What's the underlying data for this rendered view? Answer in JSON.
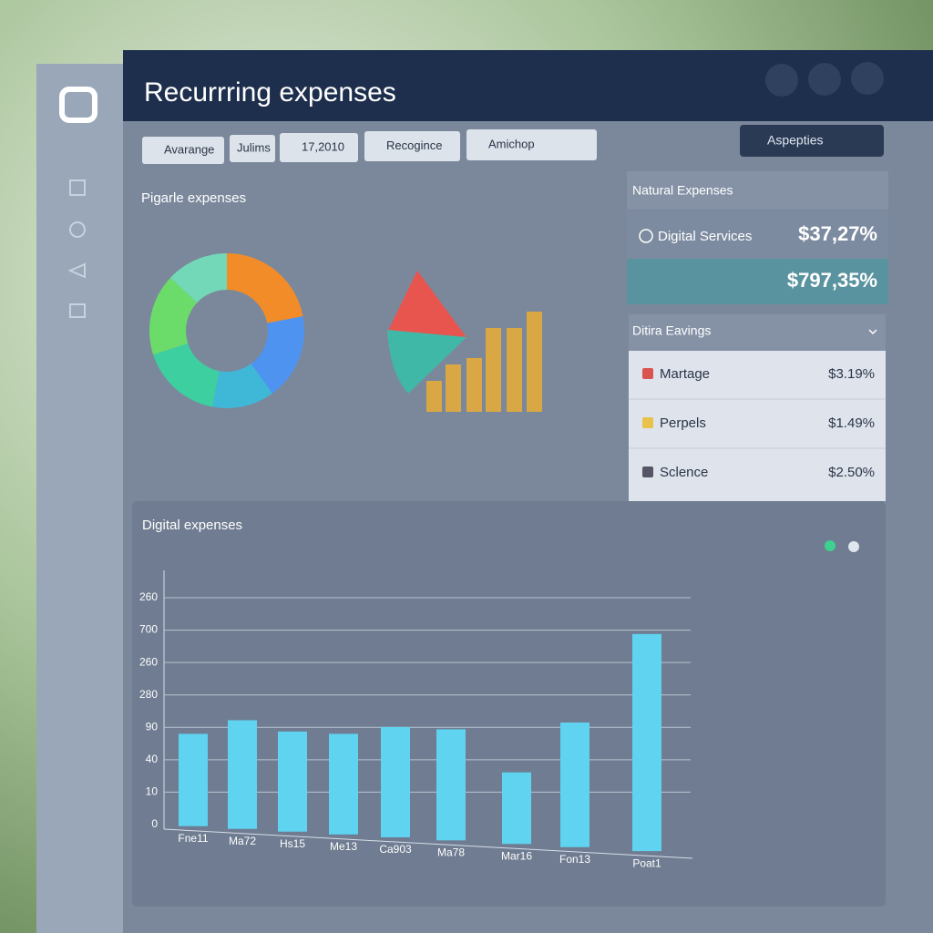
{
  "header": {
    "title": "Recurrring expenses"
  },
  "filters": [
    "Avarange",
    "Julims",
    "17,2010",
    "Recogince",
    "Amichop"
  ],
  "search": "Aspepties",
  "donut_card": {
    "title": "Pigarle expenses",
    "donut": {
      "type": "pie",
      "values": [
        22,
        18,
        13,
        17,
        17,
        13
      ],
      "colors": [
        "#f28c28",
        "#4f93f0",
        "#3fb8d8",
        "#3ecfa0",
        "#6bdc6a",
        "#72d8b8"
      ]
    }
  },
  "natural_panel": {
    "title": "Natural Expenses",
    "rows": [
      {
        "label": "Digital Services",
        "value": "$37,27%"
      },
      {
        "label": "",
        "value": "$797,35%"
      }
    ]
  },
  "savings_panel": {
    "title": "Ditira Eavings",
    "rows": [
      {
        "label": "Martage",
        "value": "$3.19%"
      },
      {
        "label": "Perpels",
        "value": "$1.49%"
      },
      {
        "label": "Sclence",
        "value": "$2.50%"
      }
    ]
  },
  "chart_data": {
    "type": "bar",
    "title": "Digital expenses",
    "categories": [
      "Fne11",
      "Ma72",
      "Hs15",
      "Me13",
      "Ca903",
      "Ma78",
      "Mar16",
      "Fon13",
      "Poat1"
    ],
    "values": [
      40,
      46,
      41,
      40,
      43,
      42,
      23,
      45,
      84
    ],
    "color": "#5fd3ef",
    "ylim": [
      0,
      100
    ],
    "y_labels": [
      "0",
      "10",
      "40",
      "90",
      "280",
      "260",
      "700",
      "260"
    ],
    "grid": true
  }
}
